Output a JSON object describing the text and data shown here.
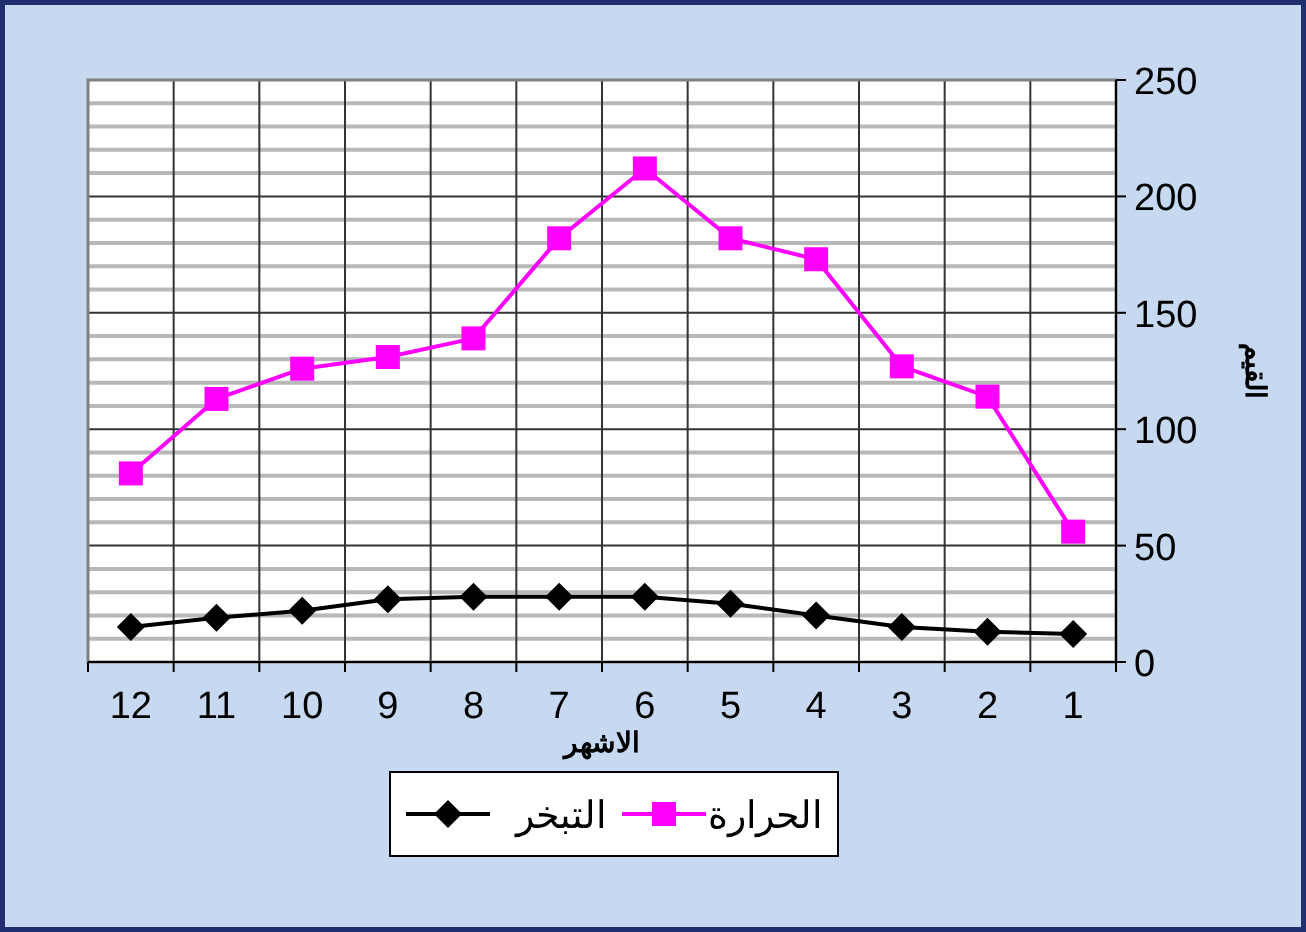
{
  "chart_data": {
    "type": "line",
    "xlabel": "الاشهر",
    "ylabel": "القيم",
    "categories": [
      "12",
      "11",
      "10",
      "9",
      "8",
      "7",
      "6",
      "5",
      "4",
      "3",
      "2",
      "1"
    ],
    "series": [
      {
        "name": "الحرارة",
        "color": "#ff00ff",
        "marker": "square",
        "values": [
          81,
          113,
          126,
          131,
          139,
          182,
          212,
          182,
          173,
          127,
          114,
          56
        ]
      },
      {
        "name": "التبخر",
        "color": "#000000",
        "marker": "diamond",
        "values": [
          15,
          19,
          22,
          27,
          28,
          28,
          28,
          25,
          20,
          15,
          13,
          12
        ]
      }
    ],
    "ylim": [
      0,
      250
    ],
    "yticks": [
      0,
      50,
      100,
      150,
      200,
      250
    ],
    "grid": true,
    "legend": "bottom"
  }
}
